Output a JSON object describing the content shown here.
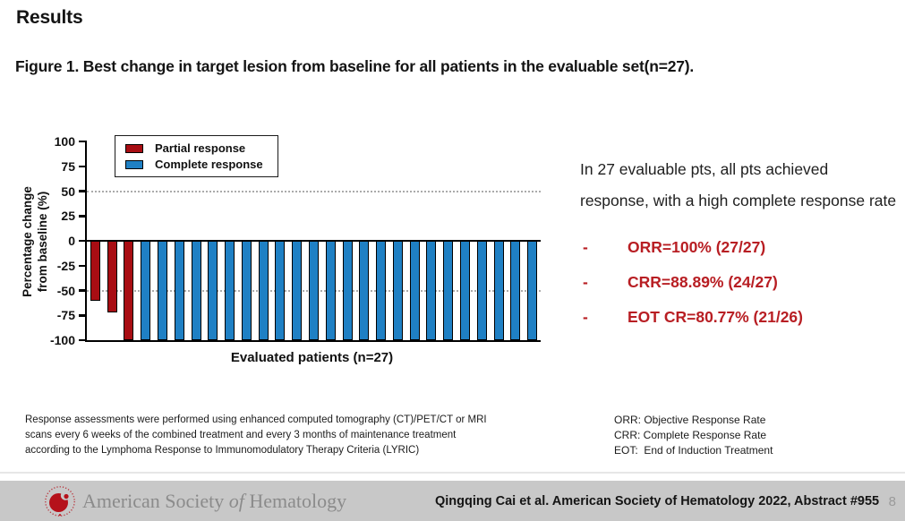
{
  "slide": {
    "title": "Results"
  },
  "figure": {
    "caption": "Figure 1. Best change in target lesion from baseline for all patients in the evaluable set(n=27)."
  },
  "chart_data": {
    "type": "bar",
    "title": "",
    "xlabel": "Evaluated patients (n=27)",
    "ylabel": "Percentage change from baseline (%)",
    "ylim": [
      -100,
      100
    ],
    "yticks": [
      100,
      75,
      50,
      25,
      0,
      -25,
      -50,
      -75,
      -100
    ],
    "reference_lines": [
      50,
      -50
    ],
    "grid": "dotted reference lines at +50 and -50 only",
    "legend_position": "top-left inside plot",
    "legend": [
      {
        "label": "Partial response",
        "color": "#a80d13"
      },
      {
        "label": "Complete response",
        "color": "#1f80c4"
      }
    ],
    "points": [
      {
        "patient": 1,
        "change_pct": -60,
        "response": "Partial response"
      },
      {
        "patient": 2,
        "change_pct": -72,
        "response": "Partial response"
      },
      {
        "patient": 3,
        "change_pct": -100,
        "response": "Partial response"
      },
      {
        "patient": 4,
        "change_pct": -100,
        "response": "Complete response"
      },
      {
        "patient": 5,
        "change_pct": -100,
        "response": "Complete response"
      },
      {
        "patient": 6,
        "change_pct": -100,
        "response": "Complete response"
      },
      {
        "patient": 7,
        "change_pct": -100,
        "response": "Complete response"
      },
      {
        "patient": 8,
        "change_pct": -100,
        "response": "Complete response"
      },
      {
        "patient": 9,
        "change_pct": -100,
        "response": "Complete response"
      },
      {
        "patient": 10,
        "change_pct": -100,
        "response": "Complete response"
      },
      {
        "patient": 11,
        "change_pct": -100,
        "response": "Complete response"
      },
      {
        "patient": 12,
        "change_pct": -100,
        "response": "Complete response"
      },
      {
        "patient": 13,
        "change_pct": -100,
        "response": "Complete response"
      },
      {
        "patient": 14,
        "change_pct": -100,
        "response": "Complete response"
      },
      {
        "patient": 15,
        "change_pct": -100,
        "response": "Complete response"
      },
      {
        "patient": 16,
        "change_pct": -100,
        "response": "Complete response"
      },
      {
        "patient": 17,
        "change_pct": -100,
        "response": "Complete response"
      },
      {
        "patient": 18,
        "change_pct": -100,
        "response": "Complete response"
      },
      {
        "patient": 19,
        "change_pct": -100,
        "response": "Complete response"
      },
      {
        "patient": 20,
        "change_pct": -100,
        "response": "Complete response"
      },
      {
        "patient": 21,
        "change_pct": -100,
        "response": "Complete response"
      },
      {
        "patient": 22,
        "change_pct": -100,
        "response": "Complete response"
      },
      {
        "patient": 23,
        "change_pct": -100,
        "response": "Complete response"
      },
      {
        "patient": 24,
        "change_pct": -100,
        "response": "Complete response"
      },
      {
        "patient": 25,
        "change_pct": -100,
        "response": "Complete response"
      },
      {
        "patient": 26,
        "change_pct": -100,
        "response": "Complete response"
      },
      {
        "patient": 27,
        "change_pct": -100,
        "response": "Complete response"
      }
    ]
  },
  "summary": {
    "text": "In 27 evaluable pts, all pts achieved response, with a high complete response rate",
    "bullet_marker": "-",
    "bullets": [
      "ORR=100% (27/27)",
      "CRR=88.89% (24/27)",
      "EOT CR=80.77% (21/26)"
    ],
    "text_color": "#b81e23"
  },
  "footnote": {
    "lines": [
      "Response assessments were performed using enhanced computed tomography (CT)/PET/CT or MRI",
      "scans every 6 weeks of the combined treatment and every 3 months of maintenance treatment",
      "according to the Lymphoma Response to Immunomodulatory Therapy Criteria (LYRIC)"
    ]
  },
  "abbreviations": {
    "lines": [
      "ORR: Objective Response Rate",
      "CRR: Complete Response Rate",
      "EOT:  End of Induction Treatment"
    ]
  },
  "footer": {
    "logo_text_parts": [
      "American Society ",
      "of",
      " Hematology"
    ],
    "citation": "Qingqing Cai et al. American Society of Hematology 2022, Abstract #955",
    "page_number": "8",
    "bg_color": "#c8c8c8",
    "logo_color": "#b5121b"
  }
}
